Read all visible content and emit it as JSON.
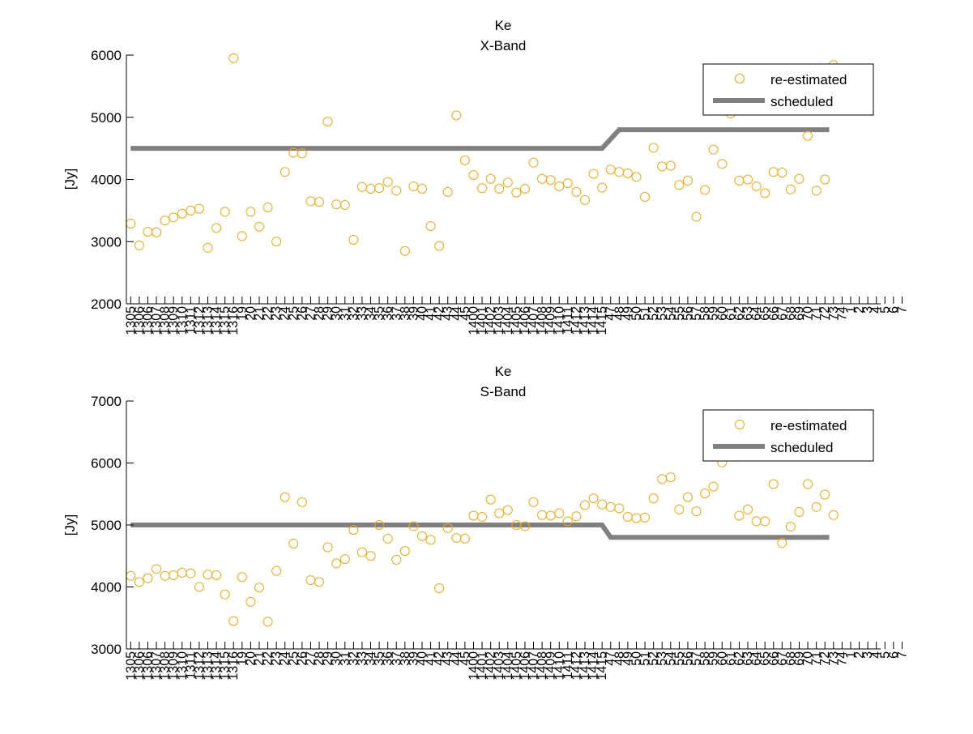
{
  "chart_data": [
    {
      "type": "scatter",
      "title": "Ke",
      "subtitle": "X-Band",
      "xlabel": "",
      "ylabel": "[Jy]",
      "ylim": [
        2000,
        6000
      ],
      "yticks": [
        2000,
        3000,
        4000,
        5000,
        6000
      ],
      "xlim": [
        0.5,
        88.5
      ],
      "grid": false,
      "legend_position": "top-right",
      "legend": [
        "re-estimated",
        "scheduled"
      ],
      "colors": {
        "reestimated": "#ffa500",
        "scheduled": "#808080"
      },
      "series": [
        {
          "name": "re-estimated",
          "marker": "circle",
          "values": [
            3290,
            2940,
            3160,
            3150,
            3340,
            3390,
            3450,
            3500,
            3530,
            2900,
            3220,
            3480,
            5950,
            3090,
            3480,
            3240,
            3550,
            3000,
            4120,
            4430,
            4420,
            3650,
            3640,
            4930,
            3600,
            3590,
            3030,
            3880,
            3850,
            3860,
            3960,
            3820,
            2850,
            3890,
            3850,
            3250,
            2930,
            3800,
            5030,
            4310,
            4070,
            3860,
            4010,
            3850,
            3950,
            3790,
            3850,
            4270,
            4010,
            3990,
            3890,
            3940,
            3800,
            3670,
            4090,
            3870,
            4160,
            4120,
            4100,
            4040,
            3720,
            4510,
            4210,
            4220,
            3910,
            3980,
            3400,
            3830,
            4480,
            4250,
            5060,
            3980,
            4000,
            3890,
            3780,
            4120,
            4110,
            3840,
            4010,
            4700,
            3820,
            4000,
            5840
          ]
        },
        {
          "name": "scheduled",
          "type": "line",
          "x": [
            1,
            56,
            58,
            82.5
          ],
          "values": [
            4500,
            4500,
            4800,
            4800
          ]
        }
      ]
    },
    {
      "type": "scatter",
      "title": "Ke",
      "subtitle": "S-Band",
      "xlabel": "",
      "ylabel": "[Jy]",
      "ylim": [
        3000,
        7000
      ],
      "yticks": [
        3000,
        4000,
        5000,
        6000,
        7000
      ],
      "xlim": [
        0.5,
        88.5
      ],
      "grid": false,
      "legend_position": "top-right",
      "legend": [
        "re-estimated",
        "scheduled"
      ],
      "colors": {
        "reestimated": "#ffa500",
        "scheduled": "#808080"
      },
      "series": [
        {
          "name": "re-estimated",
          "marker": "circle",
          "values": [
            4180,
            4080,
            4140,
            4290,
            4180,
            4190,
            4230,
            4220,
            4000,
            4200,
            4190,
            3880,
            3450,
            4160,
            3760,
            3990,
            3440,
            4260,
            5450,
            4700,
            5370,
            4110,
            4080,
            4640,
            4380,
            4450,
            4920,
            4560,
            4500,
            5000,
            4780,
            4440,
            4580,
            4980,
            4820,
            4760,
            3980,
            4950,
            4790,
            4780,
            5150,
            5130,
            5410,
            5190,
            5240,
            5000,
            4980,
            5370,
            5160,
            5150,
            5190,
            5060,
            5140,
            5320,
            5430,
            5330,
            5290,
            5270,
            5130,
            5110,
            5120,
            5430,
            5740,
            5770,
            5250,
            5450,
            5220,
            5510,
            5620,
            6010,
            6230,
            5150,
            5250,
            5060,
            5060,
            5660,
            4710,
            4970,
            5210,
            5660,
            5290,
            5490,
            5160
          ]
        },
        {
          "name": "scheduled",
          "type": "line",
          "x": [
            1,
            56,
            57,
            82.5
          ],
          "values": [
            5000,
            5000,
            4800,
            4800
          ]
        }
      ]
    }
  ],
  "x_tick_labels": [
    "1305",
    "1306",
    "1306",
    "1307",
    "1308",
    "1309",
    "1310",
    "1311",
    "1312",
    "1313",
    "1314",
    "1315",
    "1316",
    "19",
    "20",
    "21",
    "22",
    "23",
    "24",
    "25",
    "26",
    "27",
    "28",
    "29",
    "30",
    "31",
    "32",
    "33",
    "34",
    "35",
    "36",
    "37",
    "38",
    "39",
    "40",
    "41",
    "42",
    "43",
    "44",
    "45",
    "1400",
    "1401",
    "1402",
    "1403",
    "1404",
    "1405",
    "1406",
    "1407",
    "1408",
    "1409",
    "1410",
    "1411",
    "1412",
    "1413",
    "1414",
    "1415",
    "47",
    "48",
    "49",
    "50",
    "51",
    "52",
    "53",
    "54",
    "55",
    "56",
    "57",
    "58",
    "59",
    "60",
    "61",
    "62",
    "63",
    "64",
    "65",
    "66",
    "67",
    "68",
    "69",
    "70",
    "71",
    "72",
    "73",
    "74",
    "1",
    "2",
    "3",
    "4",
    "5",
    "6",
    "7"
  ]
}
